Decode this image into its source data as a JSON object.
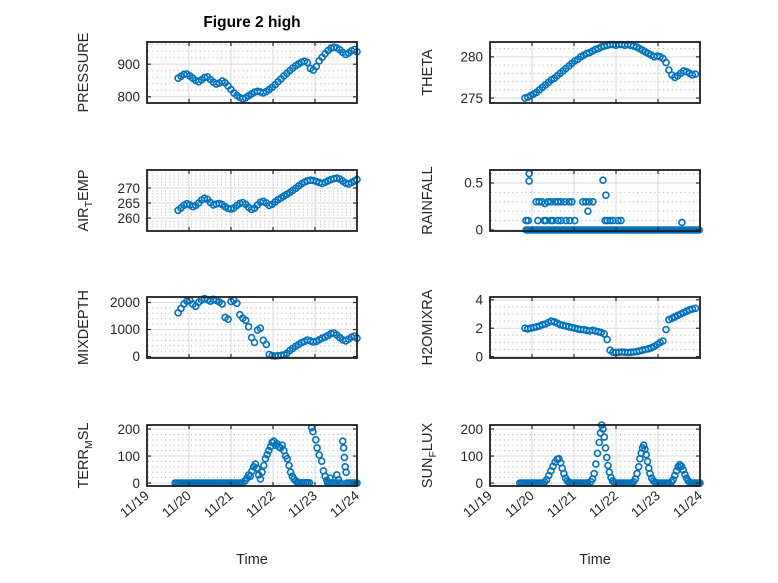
{
  "title": "Figure 2 high",
  "style": {
    "marker_color": "#0072BD",
    "box_color": "#1f1f1f",
    "tick_color": "#262626",
    "grid_color": "#d9d9d9",
    "minor_grid_color": "#b0b0b0",
    "text_color": "#262626",
    "title_color": "#000000",
    "background": "#ffffff"
  },
  "x_axis": {
    "label": "Time",
    "tick_labels": [
      "11/19",
      "11/20",
      "11/21",
      "11/22",
      "11/23",
      "11/24"
    ],
    "lim": [
      0,
      5
    ]
  },
  "chart_data": [
    {
      "id": "pressure",
      "type": "scatter",
      "row": 0,
      "col": 0,
      "ylabel": "PRESSURE",
      "ylabel_parts": [
        {
          "t": "PRESSURE"
        }
      ],
      "yticks": [
        800,
        900
      ],
      "ylim": [
        781,
        968
      ],
      "minor_step": 20,
      "x": [
        0.74,
        0.81,
        0.88,
        0.95,
        1.02,
        1.09,
        1.16,
        1.23,
        1.3,
        1.37,
        1.44,
        1.51,
        1.58,
        1.65,
        1.72,
        1.79,
        1.86,
        1.93,
        2.0,
        2.07,
        2.14,
        2.21,
        2.28,
        2.35,
        2.42,
        2.49,
        2.56,
        2.63,
        2.7,
        2.77,
        2.84,
        2.91,
        2.98,
        3.05,
        3.12,
        3.19,
        3.26,
        3.33,
        3.4,
        3.47,
        3.54,
        3.61,
        3.68,
        3.75,
        3.82,
        3.89,
        3.96,
        4.03,
        4.1,
        4.17,
        4.24,
        4.31,
        4.38,
        4.45,
        4.52,
        4.59,
        4.66,
        4.73,
        4.8,
        4.87,
        4.94,
        5.0
      ],
      "y": [
        857,
        863,
        869,
        870,
        864,
        857,
        850,
        846,
        852,
        859,
        861,
        853,
        845,
        839,
        842,
        848,
        843,
        833,
        822,
        812,
        804,
        798,
        794,
        797,
        803,
        809,
        814,
        817,
        815,
        812,
        816,
        822,
        829,
        837,
        846,
        855,
        864,
        872,
        880,
        888,
        895,
        901,
        906,
        909,
        905,
        887,
        882,
        893,
        910,
        921,
        932,
        942,
        949,
        952,
        950,
        944,
        936,
        930,
        934,
        941,
        945,
        938
      ]
    },
    {
      "id": "theta",
      "type": "scatter",
      "row": 0,
      "col": 1,
      "ylabel": "THETA",
      "ylabel_parts": [
        {
          "t": "THETA"
        }
      ],
      "yticks": [
        275,
        280
      ],
      "ylim": [
        274.4,
        281.8
      ],
      "minor_step": 1,
      "x": [
        0.83,
        0.9,
        0.97,
        1.04,
        1.11,
        1.18,
        1.25,
        1.32,
        1.39,
        1.46,
        1.53,
        1.6,
        1.67,
        1.74,
        1.81,
        1.88,
        1.95,
        2.02,
        2.09,
        2.16,
        2.23,
        2.3,
        2.37,
        2.44,
        2.51,
        2.58,
        2.65,
        2.72,
        2.79,
        2.86,
        2.93,
        3.0,
        3.07,
        3.14,
        3.21,
        3.28,
        3.35,
        3.42,
        3.49,
        3.56,
        3.63,
        3.7,
        3.77,
        3.84,
        3.91,
        3.98,
        4.05,
        4.12,
        4.19,
        4.26,
        4.33,
        4.4,
        4.47,
        4.54,
        4.61,
        4.68,
        4.75,
        4.82,
        4.89
      ],
      "y": [
        275.0,
        275.1,
        275.3,
        275.5,
        275.7,
        276.0,
        276.3,
        276.6,
        276.9,
        277.2,
        277.4,
        277.7,
        278.0,
        278.3,
        278.6,
        278.9,
        279.2,
        279.5,
        279.7,
        280.0,
        280.2,
        280.4,
        280.5,
        280.7,
        280.9,
        281.0,
        281.2,
        281.3,
        281.4,
        281.5,
        281.5,
        281.4,
        281.5,
        281.5,
        281.4,
        281.5,
        281.4,
        281.3,
        281.2,
        281.0,
        280.8,
        280.6,
        280.4,
        280.2,
        280.0,
        280.1,
        280.0,
        279.8,
        279.3,
        278.4,
        277.8,
        277.5,
        277.7,
        278.0,
        278.3,
        278.2,
        278.0,
        277.8,
        277.9
      ]
    },
    {
      "id": "air-temp",
      "type": "scatter",
      "row": 1,
      "col": 0,
      "ylabel": "AIR_TEMP",
      "ylabel_parts": [
        {
          "t": "AIR"
        },
        {
          "t": "T",
          "sub": true
        },
        {
          "t": "EMP"
        }
      ],
      "yticks": [
        260,
        265,
        270
      ],
      "ylim": [
        255.7,
        276.0
      ],
      "minor_step": 1,
      "x": [
        0.74,
        0.81,
        0.88,
        0.95,
        1.02,
        1.09,
        1.16,
        1.23,
        1.3,
        1.37,
        1.44,
        1.51,
        1.58,
        1.65,
        1.72,
        1.79,
        1.86,
        1.93,
        2.0,
        2.07,
        2.14,
        2.21,
        2.28,
        2.35,
        2.42,
        2.49,
        2.56,
        2.63,
        2.7,
        2.77,
        2.84,
        2.91,
        2.98,
        3.05,
        3.12,
        3.19,
        3.26,
        3.33,
        3.4,
        3.47,
        3.54,
        3.61,
        3.68,
        3.75,
        3.82,
        3.89,
        3.96,
        4.03,
        4.1,
        4.17,
        4.24,
        4.31,
        4.38,
        4.45,
        4.52,
        4.59,
        4.66,
        4.73,
        4.8,
        4.87,
        4.94,
        5.0
      ],
      "y": [
        262.6,
        263.4,
        264.3,
        264.8,
        264.4,
        263.8,
        264.2,
        265.0,
        266.0,
        266.6,
        266.2,
        265.2,
        264.4,
        264.7,
        264.9,
        264.5,
        263.8,
        263.2,
        263.0,
        263.4,
        264.2,
        264.9,
        265.2,
        264.6,
        263.6,
        262.9,
        263.3,
        264.4,
        265.3,
        265.6,
        265.0,
        264.2,
        264.6,
        265.4,
        266.1,
        266.7,
        267.3,
        267.9,
        268.5,
        269.2,
        269.9,
        270.7,
        271.4,
        272.0,
        272.4,
        272.6,
        272.5,
        272.2,
        271.8,
        271.5,
        271.9,
        272.4,
        272.8,
        273.1,
        273.3,
        273.0,
        272.3,
        271.6,
        271.3,
        271.8,
        272.4,
        272.8
      ]
    },
    {
      "id": "rainfall",
      "type": "scatter",
      "row": 1,
      "col": 1,
      "ylabel": "RAINFALL",
      "ylabel_parts": [
        {
          "t": "RAINFALL"
        }
      ],
      "yticks": [
        0,
        0.5
      ],
      "ylim": [
        -0.011,
        0.638
      ],
      "minor_step": 0.1,
      "x": [
        0.93,
        0.93,
        1.1,
        1.17,
        1.24,
        1.31,
        1.38,
        1.45,
        1.55,
        1.62,
        1.69,
        1.78,
        1.88,
        1.95,
        2.21,
        2.28,
        2.33,
        2.36,
        2.45,
        0.86,
        0.91,
        1.14,
        1.29,
        1.33,
        1.45,
        1.5,
        1.62,
        1.69,
        1.81,
        1.9,
        2.02,
        2.74,
        2.79,
        2.86,
        2.93,
        3.05,
        3.12,
        2.69,
        2.76,
        4.57
      ],
      "y": [
        0.6,
        0.52,
        0.3,
        0.3,
        0.3,
        0.28,
        0.3,
        0.3,
        0.3,
        0.3,
        0.3,
        0.3,
        0.3,
        0.3,
        0.3,
        0.3,
        0.2,
        0.3,
        0.3,
        0.1,
        0.1,
        0.1,
        0.1,
        0.1,
        0.1,
        0.1,
        0.1,
        0.1,
        0.1,
        0.1,
        0.1,
        0.1,
        0.1,
        0.1,
        0.1,
        0.1,
        0.1,
        0.53,
        0.37,
        0.08
      ],
      "runs": [
        {
          "x0": 0.86,
          "x1": 5.0,
          "dx": 0.04,
          "y": 0
        }
      ]
    },
    {
      "id": "mixdepth",
      "type": "scatter",
      "row": 2,
      "col": 0,
      "ylabel": "MIXDEPTH",
      "ylabel_parts": [
        {
          "t": "MIXDEPTH"
        }
      ],
      "yticks": [
        0,
        1000,
        2000
      ],
      "ylim": [
        -55,
        2204
      ],
      "minor_step": 200,
      "x": [
        0.74,
        0.81,
        0.88,
        0.95,
        1.02,
        1.09,
        1.16,
        1.23,
        1.3,
        1.37,
        1.44,
        1.51,
        1.58,
        1.65,
        1.72,
        1.79,
        1.86,
        1.93,
        2.0,
        2.07,
        2.14,
        2.21,
        2.28,
        2.35,
        2.42,
        2.49,
        2.56,
        2.63,
        2.7,
        2.77,
        2.84,
        2.91,
        2.98,
        3.05,
        3.12,
        3.19,
        3.26,
        3.33,
        3.4,
        3.47,
        3.54,
        3.61,
        3.68,
        3.75,
        3.82,
        3.89,
        3.96,
        4.03,
        4.1,
        4.17,
        4.24,
        4.31,
        4.38,
        4.45,
        4.52,
        4.59,
        4.66,
        4.73,
        4.8,
        4.87,
        4.94,
        5.0
      ],
      "y": [
        1620,
        1780,
        1950,
        2050,
        2080,
        1940,
        1860,
        2010,
        2090,
        2150,
        2100,
        2050,
        2120,
        2080,
        2020,
        1950,
        1450,
        1380,
        2040,
        2090,
        1970,
        1550,
        1420,
        1340,
        1100,
        700,
        520,
        980,
        1050,
        600,
        450,
        80,
        30,
        20,
        30,
        40,
        60,
        120,
        220,
        300,
        380,
        450,
        520,
        560,
        610,
        580,
        540,
        560,
        620,
        680,
        720,
        780,
        850,
        870,
        800,
        700,
        620,
        580,
        640,
        720,
        760,
        680
      ]
    },
    {
      "id": "h2omixra",
      "type": "scatter",
      "row": 2,
      "col": 1,
      "ylabel": "H2OMIXRA",
      "ylabel_parts": [
        {
          "t": "H2OMIXRA"
        }
      ],
      "yticks": [
        0,
        2,
        4
      ],
      "ylim": [
        -0.1,
        4.2
      ],
      "minor_step": 0.5,
      "x": [
        0.83,
        0.9,
        0.97,
        1.04,
        1.11,
        1.18,
        1.25,
        1.32,
        1.39,
        1.46,
        1.53,
        1.6,
        1.67,
        1.74,
        1.81,
        1.88,
        1.95,
        2.02,
        2.09,
        2.16,
        2.23,
        2.3,
        2.37,
        2.44,
        2.51,
        2.58,
        2.65,
        2.72,
        2.79,
        2.86,
        2.93,
        3.0,
        3.07,
        3.14,
        3.21,
        3.28,
        3.35,
        3.42,
        3.49,
        3.56,
        3.63,
        3.7,
        3.77,
        3.84,
        3.91,
        3.98,
        4.05,
        4.12,
        4.19,
        4.26,
        4.33,
        4.4,
        4.47,
        4.54,
        4.61,
        4.68,
        4.75,
        4.82,
        4.89
      ],
      "y": [
        2.0,
        1.95,
        2.0,
        2.05,
        2.1,
        2.15,
        2.25,
        2.3,
        2.4,
        2.5,
        2.45,
        2.35,
        2.25,
        2.2,
        2.15,
        2.1,
        2.05,
        2.0,
        1.95,
        1.9,
        1.9,
        1.85,
        1.8,
        1.85,
        1.8,
        1.75,
        1.7,
        1.6,
        1.2,
        0.45,
        0.3,
        0.28,
        0.3,
        0.32,
        0.3,
        0.28,
        0.3,
        0.32,
        0.35,
        0.4,
        0.45,
        0.5,
        0.55,
        0.62,
        0.72,
        0.85,
        1.0,
        1.1,
        1.9,
        2.6,
        2.7,
        2.8,
        2.9,
        3.0,
        3.1,
        3.2,
        3.3,
        3.35,
        3.4
      ]
    },
    {
      "id": "terr-msl",
      "type": "scatter",
      "row": 3,
      "col": 0,
      "ylabel": "TERR_MSL",
      "ylabel_parts": [
        {
          "t": "TERR"
        },
        {
          "t": "M",
          "sub": true
        },
        {
          "t": "SL"
        }
      ],
      "yticks": [
        0,
        100,
        200
      ],
      "ylim": [
        -11,
        215
      ],
      "minor_step": 20,
      "x": [
        2.33,
        2.38,
        2.42,
        2.46,
        2.5,
        2.54,
        2.58,
        2.62,
        2.66,
        2.7,
        2.74,
        2.78,
        2.82,
        2.86,
        2.9,
        2.94,
        2.98,
        3.02,
        3.06,
        3.1,
        3.14,
        3.18,
        3.22,
        3.26,
        3.3,
        3.34,
        3.38,
        3.42,
        3.46,
        3.5,
        3.54,
        3.58,
        3.92,
        3.95,
        4.02,
        4.05,
        4.1,
        4.16,
        4.2,
        4.24,
        4.28,
        4.36,
        4.52,
        4.56,
        4.66,
        4.68,
        4.7,
        4.72,
        4.74
      ],
      "y": [
        8,
        18,
        30,
        25,
        45,
        60,
        70,
        55,
        30,
        15,
        40,
        65,
        90,
        105,
        120,
        135,
        150,
        155,
        140,
        145,
        135,
        130,
        140,
        120,
        100,
        90,
        65,
        40,
        25,
        15,
        8,
        3,
        205,
        190,
        160,
        130,
        104,
        81,
        45,
        25,
        10,
        18,
        30,
        12,
        155,
        130,
        95,
        60,
        40
      ],
      "runs": [
        {
          "x0": 0.67,
          "x1": 2.3,
          "dx": 0.042,
          "y": 0
        },
        {
          "x0": 3.6,
          "x1": 3.9,
          "dx": 0.045,
          "y": 1
        },
        {
          "x0": 4.3,
          "x1": 4.64,
          "dx": 0.045,
          "y": 0
        },
        {
          "x0": 4.76,
          "x1": 5.0,
          "dx": 0.04,
          "y": 0
        }
      ]
    },
    {
      "id": "sun-flux",
      "type": "scatter",
      "row": 3,
      "col": 1,
      "ylabel": "SUN_FLUX",
      "ylabel_parts": [
        {
          "t": "SUN"
        },
        {
          "t": "F",
          "sub": true
        },
        {
          "t": "LUX"
        }
      ],
      "yticks": [
        0,
        100,
        200
      ],
      "ylim": [
        -11,
        215
      ],
      "minor_step": 20,
      "x": [
        1.3,
        1.35,
        1.4,
        1.45,
        1.5,
        1.55,
        1.6,
        1.64,
        1.68,
        1.72,
        1.76,
        1.8,
        1.84,
        1.88,
        2.4,
        2.44,
        2.48,
        2.52,
        2.56,
        2.6,
        2.63,
        2.66,
        2.69,
        2.72,
        2.75,
        2.78,
        2.81,
        2.84,
        2.88,
        2.92,
        2.96,
        3.42,
        3.46,
        3.5,
        3.54,
        3.57,
        3.6,
        3.63,
        3.66,
        3.69,
        3.72,
        3.75,
        3.78,
        3.81,
        3.85,
        3.89,
        3.93,
        4.32,
        4.36,
        4.4,
        4.44,
        4.48,
        4.52,
        4.56,
        4.6,
        4.64,
        4.68,
        4.72,
        4.76
      ],
      "y": [
        4,
        12,
        28,
        45,
        62,
        78,
        88,
        90,
        75,
        55,
        35,
        18,
        8,
        3,
        5,
        15,
        35,
        70,
        110,
        150,
        185,
        215,
        200,
        170,
        130,
        95,
        65,
        40,
        20,
        8,
        3,
        5,
        15,
        35,
        60,
        90,
        110,
        130,
        140,
        125,
        105,
        80,
        55,
        35,
        18,
        8,
        3,
        4,
        12,
        28,
        45,
        60,
        68,
        62,
        48,
        32,
        18,
        8,
        3
      ],
      "runs": [
        {
          "x0": 0.71,
          "x1": 1.26,
          "dx": 0.042,
          "y": 0
        },
        {
          "x0": 1.9,
          "x1": 2.36,
          "dx": 0.042,
          "y": 0
        },
        {
          "x0": 3.0,
          "x1": 3.38,
          "dx": 0.042,
          "y": 0
        },
        {
          "x0": 3.97,
          "x1": 4.28,
          "dx": 0.042,
          "y": 0
        },
        {
          "x0": 4.8,
          "x1": 5.0,
          "dx": 0.04,
          "y": 0
        }
      ]
    }
  ]
}
